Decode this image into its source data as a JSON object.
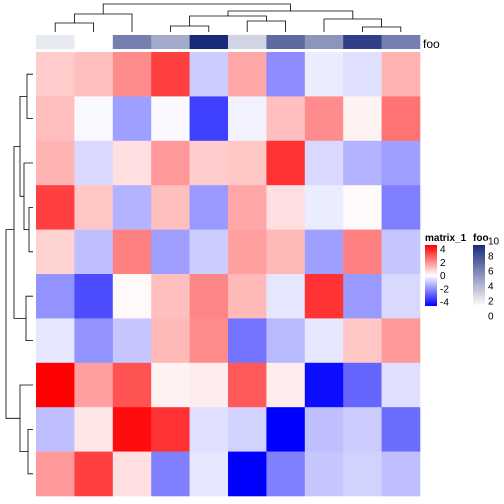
{
  "chart_data": {
    "type": "heatmap",
    "n_rows": 10,
    "n_cols": 10,
    "matrix": [
      [
        0.8,
        1.0,
        1.8,
        3.0,
        -0.8,
        1.4,
        -1.8,
        -0.3,
        -0.5,
        1.2
      ],
      [
        1.0,
        -0.1,
        -1.5,
        -0.1,
        -3.0,
        -0.2,
        1.0,
        1.8,
        0.2,
        2.2
      ],
      [
        1.2,
        -0.6,
        0.5,
        1.6,
        0.8,
        0.9,
        3.2,
        -0.6,
        -1.2,
        -1.5
      ],
      [
        3.0,
        0.9,
        -1.2,
        1.0,
        -1.6,
        1.4,
        0.5,
        -0.3,
        0.1,
        -2.0
      ],
      [
        0.7,
        -1.0,
        2.0,
        -1.5,
        -0.8,
        1.5,
        1.1,
        -1.5,
        2.0,
        -0.9
      ],
      [
        -1.7,
        -2.8,
        0.1,
        1.0,
        1.9,
        1.1,
        -0.4,
        3.2,
        -1.6,
        -0.6
      ],
      [
        -0.4,
        -1.7,
        -0.9,
        1.1,
        1.8,
        -2.2,
        -1.1,
        -0.4,
        0.9,
        1.6
      ],
      [
        4.0,
        1.5,
        2.7,
        0.2,
        0.3,
        2.6,
        0.3,
        -3.8,
        -2.4,
        -0.5
      ],
      [
        -1.0,
        0.4,
        3.8,
        3.2,
        -0.5,
        -0.7,
        -4.2,
        -1.0,
        -0.8,
        -2.3
      ],
      [
        1.6,
        3.0,
        0.5,
        -2.0,
        -0.4,
        -4.3,
        -2.0,
        -0.9,
        -0.7,
        -1.0
      ]
    ],
    "annotation": {
      "name": "foo",
      "values": [
        1,
        0,
        6,
        4,
        10,
        2,
        7,
        5,
        9,
        6
      ]
    },
    "legends": [
      {
        "title": "matrix_1",
        "breaks": [
          "4",
          "2",
          "0",
          "-2",
          "-4"
        ],
        "colors": [
          "#0000ff",
          "#ffffff",
          "#ff0000"
        ]
      },
      {
        "title": "foo",
        "breaks": [
          "10",
          "8",
          "6",
          "4",
          "2",
          "0"
        ],
        "colors": [
          "#ffffff",
          "#1a2a7a"
        ]
      }
    ],
    "row_dendrogram": true,
    "column_dendrogram": true
  }
}
